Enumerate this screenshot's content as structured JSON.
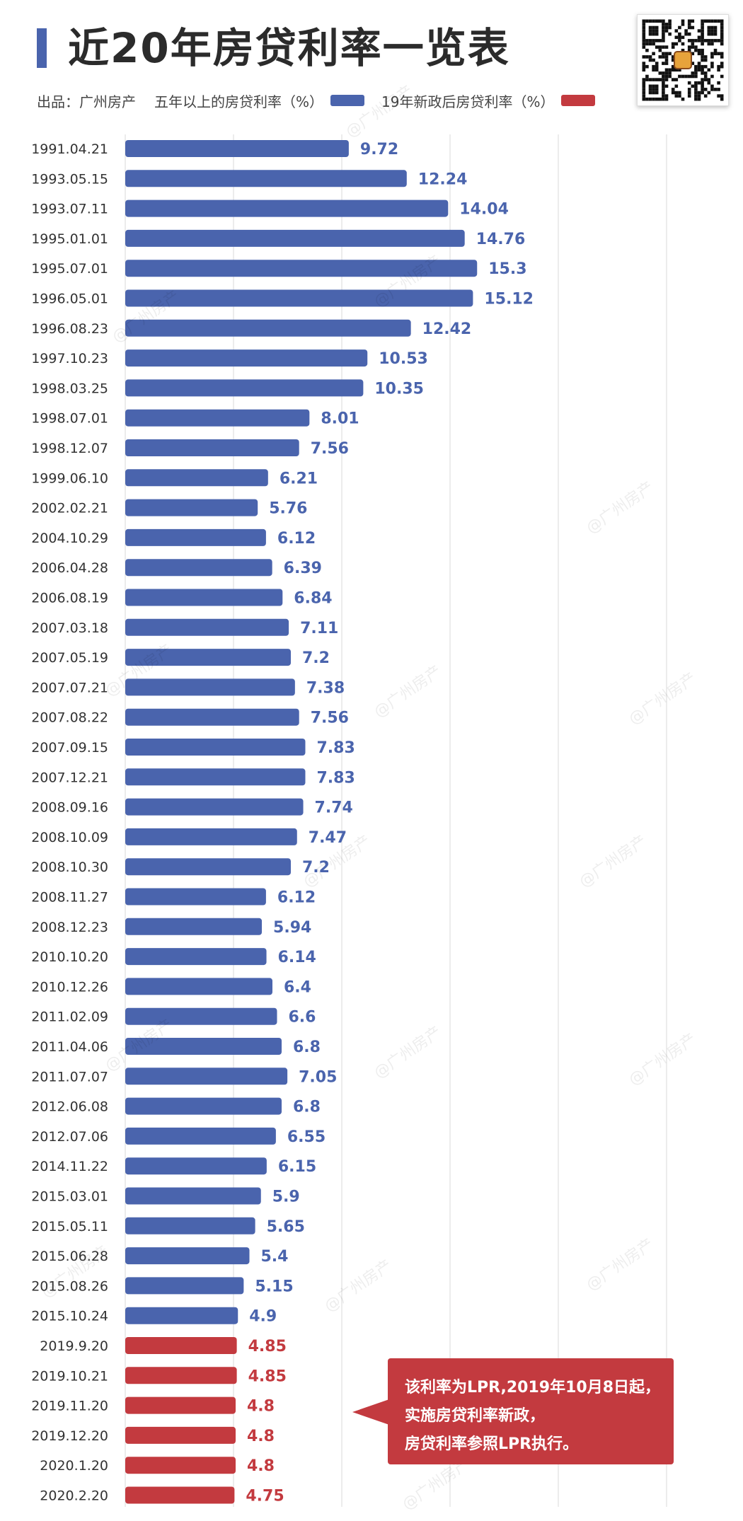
{
  "header": {
    "title": "近20年房贷利率一览表",
    "source_label": "出品：广州房产",
    "legend_items": [
      {
        "label": "五年以上的房贷利率（%）",
        "color": "#4a64ad"
      },
      {
        "label": "19年新政后房贷利率（%）",
        "color": "#c33a3f"
      }
    ]
  },
  "watermark": "@广州房产",
  "callout": {
    "lines": [
      "该利率为LPR,2019年10月8日起，",
      "实施房贷利率新政，",
      "房贷利率参照LPR执行。"
    ]
  },
  "colors": {
    "blue": "#4a64ad",
    "red": "#c33a3f",
    "grid": "#e6e6e6"
  },
  "chart_data": {
    "type": "bar",
    "orientation": "horizontal",
    "grid": true,
    "categories": [
      "1991.04.21",
      "1993.05.15",
      "1993.07.11",
      "1995.01.01",
      "1995.07.01",
      "1996.05.01",
      "1996.08.23",
      "1997.10.23",
      "1998.03.25",
      "1998.07.01",
      "1998.12.07",
      "1999.06.10",
      "2002.02.21",
      "2004.10.29",
      "2006.04.28",
      "2006.08.19",
      "2007.03.18",
      "2007.05.19",
      "2007.07.21",
      "2007.08.22",
      "2007.09.15",
      "2007.12.21",
      "2008.09.16",
      "2008.10.09",
      "2008.10.30",
      "2008.11.27",
      "2008.12.23",
      "2010.10.20",
      "2010.12.26",
      "2011.02.09",
      "2011.04.06",
      "2011.07.07",
      "2012.06.08",
      "2012.07.06",
      "2014.11.22",
      "2015.03.01",
      "2015.05.11",
      "2015.06.28",
      "2015.08.26",
      "2015.10.24",
      "2019.9.20",
      "2019.10.21",
      "2019.11.20",
      "2019.12.20",
      "2020.1.20",
      "2020.2.20"
    ],
    "series": [
      {
        "name": "五年以上的房贷利率（%）",
        "color": "#4a64ad",
        "values": [
          9.72,
          12.24,
          14.04,
          14.76,
          15.3,
          15.12,
          12.42,
          10.53,
          10.35,
          8.01,
          7.56,
          6.21,
          5.76,
          6.12,
          6.39,
          6.84,
          7.11,
          7.2,
          7.38,
          7.56,
          7.83,
          7.83,
          7.74,
          7.47,
          7.2,
          6.12,
          5.94,
          6.14,
          6.4,
          6.6,
          6.8,
          7.05,
          6.8,
          6.55,
          6.15,
          5.9,
          5.65,
          5.4,
          5.15,
          4.9,
          null,
          null,
          null,
          null,
          null,
          null
        ],
        "labels": [
          "9.72",
          "12.24",
          "14.04",
          "14.76",
          "15.3",
          "15.12",
          "12.42",
          "10.53",
          "10.35",
          "8.01",
          "7.56",
          "6.21",
          "5.76",
          "6.12",
          "6.39",
          "6.84",
          "7.11",
          "7.2",
          "7.38",
          "7.56",
          "7.83",
          "7.83",
          "7.74",
          "7.47",
          "7.2",
          "6.12",
          "5.94",
          "6.14",
          "6.4",
          "6.6",
          "6.8",
          "7.05",
          "6.8",
          "6.55",
          "6.15",
          "5.9",
          "5.65",
          "5.4",
          "5.15",
          "4.9",
          "",
          "",
          "",
          "",
          "",
          ""
        ]
      },
      {
        "name": "19年新政后房贷利率（%）",
        "color": "#c33a3f",
        "values": [
          null,
          null,
          null,
          null,
          null,
          null,
          null,
          null,
          null,
          null,
          null,
          null,
          null,
          null,
          null,
          null,
          null,
          null,
          null,
          null,
          null,
          null,
          null,
          null,
          null,
          null,
          null,
          null,
          null,
          null,
          null,
          null,
          null,
          null,
          null,
          null,
          null,
          null,
          null,
          null,
          4.85,
          4.85,
          4.8,
          4.8,
          4.8,
          4.75
        ],
        "labels": [
          "",
          "",
          "",
          "",
          "",
          "",
          "",
          "",
          "",
          "",
          "",
          "",
          "",
          "",
          "",
          "",
          "",
          "",
          "",
          "",
          "",
          "",
          "",
          "",
          "",
          "",
          "",
          "",
          "",
          "",
          "",
          "",
          "",
          "",
          "",
          "",
          "",
          "",
          "",
          "",
          "4.85",
          "4.85",
          "4.8",
          "4.8",
          "4.8",
          "4.75"
        ]
      }
    ]
  }
}
